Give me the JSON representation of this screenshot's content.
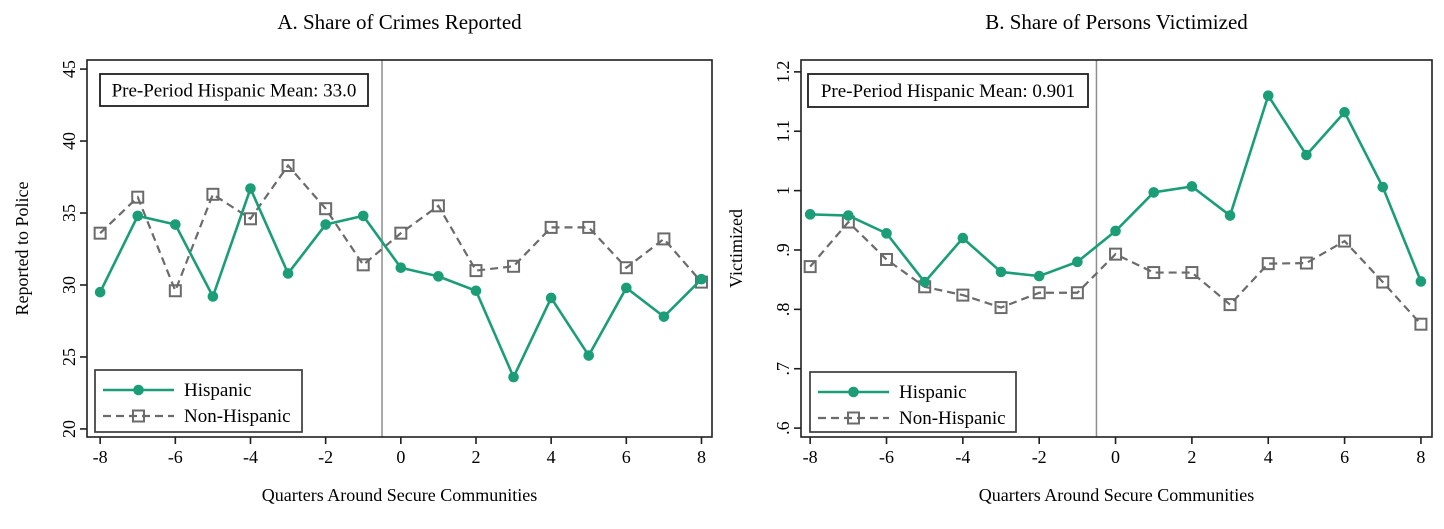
{
  "figure": {
    "background": "#ffffff"
  },
  "colors": {
    "hispanic_green": "#1b9e77",
    "non_hispanic_gray": "#6b6b6b",
    "frame": "#1f1f1f",
    "reference_line": "#8e8e8e",
    "legend_border": "#3c3c3c",
    "text": "#000000"
  },
  "chart_data": [
    {
      "key": "a",
      "type": "line",
      "title": "A. Share of Crimes Reported",
      "xlabel": "Quarters Around Secure Communities",
      "ylabel": "Reported to Police",
      "annotation": "Pre-Period Hispanic Mean: 33.0",
      "pre_period_hispanic_mean": 33.0,
      "x": [
        -8,
        -7,
        -6,
        -5,
        -4,
        -3,
        -2,
        -1,
        0,
        1,
        2,
        3,
        4,
        5,
        6,
        7,
        8
      ],
      "series": [
        {
          "name": "Hispanic",
          "color": "#1b9e77",
          "line": "solid",
          "marker": "circle",
          "values": [
            29.5,
            34.8,
            34.2,
            29.2,
            36.7,
            30.8,
            34.2,
            34.8,
            31.2,
            30.6,
            29.6,
            23.6,
            29.1,
            25.1,
            29.8,
            27.8,
            30.4
          ]
        },
        {
          "name": "Non-Hispanic",
          "color": "#6b6b6b",
          "line": "dashed",
          "marker": "square",
          "values": [
            33.6,
            36.1,
            29.6,
            36.3,
            34.6,
            38.3,
            35.3,
            31.4,
            33.6,
            35.5,
            31.0,
            31.3,
            34.0,
            34.0,
            31.2,
            33.2,
            30.2
          ]
        }
      ],
      "xlim": [
        -8.35,
        8.28
      ],
      "ylim": [
        19.44,
        45.63
      ],
      "yticks": [
        20,
        25,
        30,
        35,
        40,
        45
      ],
      "ytick_labels": [
        "20",
        "25",
        "30",
        "35",
        "40",
        "45"
      ],
      "xticks": [
        -8,
        -6,
        -4,
        -2,
        0,
        2,
        4,
        6,
        8
      ],
      "xtick_labels": [
        "-8",
        "-6",
        "-4",
        "-2",
        "0",
        "2",
        "4",
        "6",
        "8"
      ],
      "vline_x": -0.5,
      "grid": false,
      "legend_position": "bottom-left"
    },
    {
      "key": "b",
      "type": "line",
      "title": "B. Share of Persons Victimized",
      "xlabel": "Quarters Around Secure Communities",
      "ylabel": "Victimized",
      "annotation": "Pre-Period Hispanic Mean:  0.901",
      "pre_period_hispanic_mean": 0.901,
      "x": [
        -8,
        -7,
        -6,
        -5,
        -4,
        -3,
        -2,
        -1,
        0,
        1,
        2,
        3,
        4,
        5,
        6,
        7,
        8
      ],
      "series": [
        {
          "name": "Hispanic",
          "color": "#1b9e77",
          "line": "solid",
          "marker": "circle",
          "values": [
            0.96,
            0.958,
            0.928,
            0.846,
            0.92,
            0.863,
            0.856,
            0.88,
            0.932,
            0.997,
            1.007,
            0.958,
            1.16,
            1.06,
            1.132,
            1.006,
            0.847
          ]
        },
        {
          "name": "Non-Hispanic",
          "color": "#6b6b6b",
          "line": "dashed",
          "marker": "square",
          "values": [
            0.872,
            0.947,
            0.884,
            0.838,
            0.824,
            0.803,
            0.828,
            0.828,
            0.893,
            0.862,
            0.862,
            0.808,
            0.877,
            0.878,
            0.915,
            0.846,
            0.775
          ]
        }
      ],
      "xlim": [
        -8.24,
        8.29
      ],
      "ylim": [
        0.585,
        1.22
      ],
      "yticks": [
        0.6,
        0.7,
        0.8,
        0.9,
        1,
        1.1,
        1.2
      ],
      "ytick_labels": [
        ".6",
        ".7",
        ".8",
        ".9",
        "1",
        "1.1",
        "1.2"
      ],
      "xticks": [
        -8,
        -6,
        -4,
        -2,
        0,
        2,
        4,
        6,
        8
      ],
      "xtick_labels": [
        "-8",
        "-6",
        "-4",
        "-2",
        "0",
        "2",
        "4",
        "6",
        "8"
      ],
      "vline_x": -0.5,
      "grid": false,
      "legend_position": "bottom-left"
    }
  ]
}
